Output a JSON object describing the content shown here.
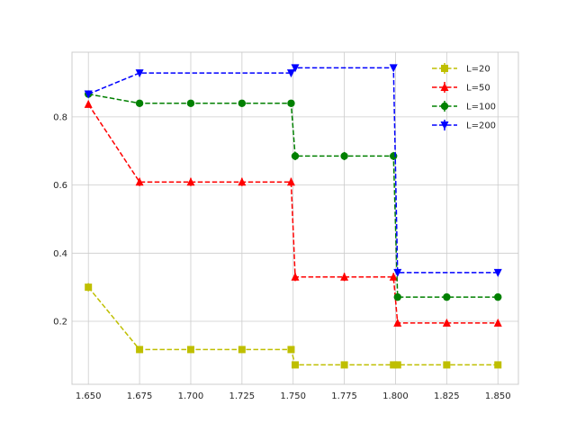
{
  "chart_data": {
    "type": "line",
    "title": "",
    "xlabel": "",
    "ylabel": "",
    "xlim": [
      1.642,
      1.86
    ],
    "ylim": [
      0.015,
      0.99
    ],
    "xticks": [
      1.65,
      1.675,
      1.7,
      1.725,
      1.75,
      1.775,
      1.8,
      1.825,
      1.85
    ],
    "xtick_labels": [
      "1.650",
      "1.675",
      "1.700",
      "1.725",
      "1.750",
      "1.775",
      "1.800",
      "1.825",
      "1.850"
    ],
    "yticks": [
      0.2,
      0.4,
      0.6,
      0.8
    ],
    "ytick_labels": [
      "0.2",
      "0.4",
      "0.6",
      "0.8"
    ],
    "grid": true,
    "legend_position": "top-right",
    "series": [
      {
        "name": "L=20",
        "color": "#bfbf00",
        "marker": "square",
        "x": [
          1.65,
          1.675,
          1.7,
          1.725,
          1.749,
          1.751,
          1.775,
          1.799,
          1.801,
          1.825,
          1.85
        ],
        "y": [
          0.3,
          0.117,
          0.117,
          0.117,
          0.117,
          0.072,
          0.072,
          0.072,
          0.072,
          0.072,
          0.072
        ],
        "err": [
          0.012,
          0.006,
          0.006,
          0.006,
          0.006,
          0.004,
          0.004,
          0.004,
          0.004,
          0.004,
          0.004
        ]
      },
      {
        "name": "L=50",
        "color": "#ff0000",
        "marker": "triangle-up",
        "x": [
          1.65,
          1.675,
          1.7,
          1.725,
          1.749,
          1.751,
          1.775,
          1.799,
          1.801,
          1.825,
          1.85
        ],
        "y": [
          0.837,
          0.609,
          0.609,
          0.609,
          0.609,
          0.33,
          0.33,
          0.33,
          0.195,
          0.195,
          0.195
        ],
        "err": [
          0.006,
          0.012,
          0.012,
          0.012,
          0.012,
          0.012,
          0.012,
          0.012,
          0.006,
          0.006,
          0.006
        ]
      },
      {
        "name": "L=100",
        "color": "#008000",
        "marker": "circle",
        "x": [
          1.65,
          1.675,
          1.7,
          1.725,
          1.749,
          1.751,
          1.775,
          1.799,
          1.801,
          1.825,
          1.85
        ],
        "y": [
          0.867,
          0.84,
          0.84,
          0.84,
          0.84,
          0.685,
          0.685,
          0.685,
          0.271,
          0.271,
          0.271
        ],
        "err": [
          0.006,
          0.006,
          0.006,
          0.006,
          0.006,
          0.012,
          0.012,
          0.012,
          0.006,
          0.006,
          0.006
        ]
      },
      {
        "name": "L=200",
        "color": "#0000ff",
        "marker": "triangle-down",
        "x": [
          1.65,
          1.675,
          1.749,
          1.751,
          1.799,
          1.801,
          1.85
        ],
        "y": [
          0.867,
          0.929,
          0.929,
          0.944,
          0.944,
          0.343,
          0.343
        ],
        "err": [
          0.004,
          0.004,
          0.004,
          0.004,
          0.004,
          0.004,
          0.004
        ]
      }
    ]
  }
}
